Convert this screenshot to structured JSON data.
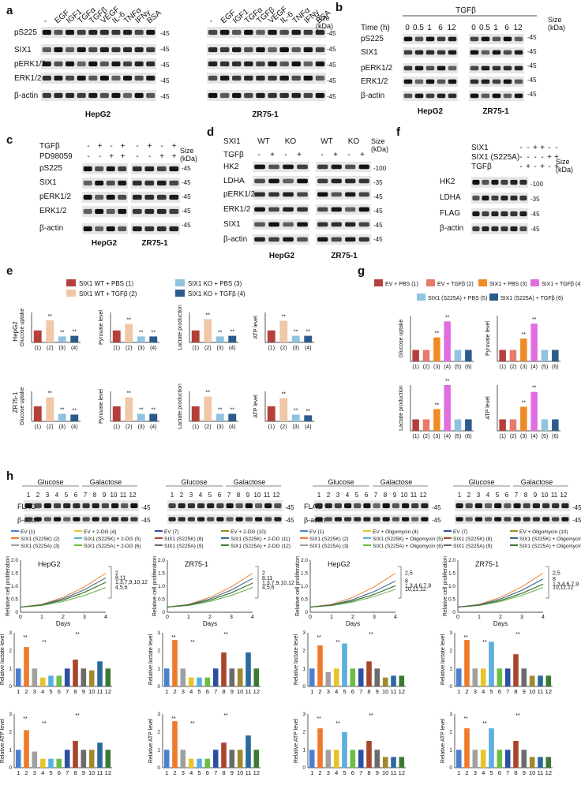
{
  "panel_letters": [
    "a",
    "b",
    "c",
    "d",
    "e",
    "f",
    "g",
    "h"
  ],
  "common": {
    "size_kda_1": "Size",
    "size_kda_2": "(kDa)",
    "hepg2": "HepG2",
    "zr75": "ZR75-1",
    "days": "Days",
    "beta_actin": "β-actin"
  },
  "panel_a": {
    "treatments": [
      "-",
      "EGF",
      "IGF1",
      "TGFα",
      "TGFβ",
      "VEGF",
      "IL-6",
      "TNFα",
      "IFNγ",
      "BSA"
    ],
    "rows": [
      "pS225",
      "SIX1",
      "pERK1/2",
      "ERK1/2",
      "β-actin"
    ],
    "sizes": [
      "45",
      "45",
      "45",
      "45",
      "45"
    ]
  },
  "panel_b": {
    "header": "TGFβ",
    "time_label": "Time (h)",
    "times": [
      "0",
      "0.5",
      "1",
      "6",
      "12"
    ],
    "rows": [
      "pS225",
      "SIX1",
      "pERK1/2",
      "ERK1/2",
      "β-actin"
    ],
    "sizes": [
      "45",
      "45",
      "45",
      "45",
      "45"
    ]
  },
  "panel_c": {
    "treat_labels": [
      "TGFβ",
      "PD98059"
    ],
    "tgfb_signs": [
      "-",
      "+",
      "-",
      "+"
    ],
    "pd_signs": [
      "-",
      "-",
      "+",
      "+"
    ],
    "rows": [
      "pS225",
      "SIX1",
      "pERK1/2",
      "ERK1/2",
      "β-actin"
    ],
    "sizes": [
      "45",
      "45",
      "45",
      "45",
      "45"
    ]
  },
  "panel_d": {
    "genotype_label": "SXI1",
    "genotypes": [
      "WT",
      "KO"
    ],
    "tgfb_label": "TGFβ",
    "tgfb_signs": [
      "-",
      "+",
      "-",
      "+"
    ],
    "rows": [
      "HK2",
      "LDHA",
      "pERK1/2",
      "ERK1/2",
      "SIX1",
      "β-actin"
    ],
    "sizes": [
      "100",
      "35",
      "45",
      "45",
      "45",
      "45"
    ]
  },
  "panel_f": {
    "treat_labels": [
      "SIX1",
      "SIX1 (S225A)",
      "TGFβ"
    ],
    "six1_signs": [
      "-",
      "-",
      "+",
      "+",
      "-",
      "-"
    ],
    "s225a_signs": [
      "-",
      "-",
      "-",
      "-",
      "+",
      "+"
    ],
    "tgfb_signs": [
      "-",
      "+",
      "-",
      "+",
      "-",
      "+"
    ],
    "rows": [
      "HK2",
      "LDHA",
      "FLAG",
      "β-actin"
    ],
    "sizes": [
      "100",
      "35",
      "45",
      "45"
    ]
  },
  "chart_data": [
    {
      "id": "e-hepg2",
      "type": "bar",
      "cell_line": "HepG2",
      "legend": [
        "SIX1 WT + PBS (1)",
        "SIX1 WT + TGFβ (2)",
        "SIX1 KO + PBS (3)",
        "SIX1 KO + TGFβ (4)"
      ],
      "colors": [
        "#b4403c",
        "#f0c8a8",
        "#8fc3e0",
        "#2c5a8c"
      ],
      "categories": [
        "(1)",
        "(2)",
        "(3)",
        "(4)"
      ],
      "ylim": [
        0,
        2.5
      ],
      "subplots": [
        {
          "ylabel": "Glucose uptake",
          "values": [
            1.0,
            1.85,
            0.5,
            0.55
          ],
          "stars": [
            "",
            "**",
            "**",
            "**"
          ]
        },
        {
          "ylabel": "Pyruvate level",
          "values": [
            1.0,
            1.55,
            0.5,
            0.5
          ],
          "stars": [
            "",
            "**",
            "**",
            "**"
          ]
        },
        {
          "ylabel": "Lactate production",
          "values": [
            1.0,
            1.95,
            0.5,
            0.55
          ],
          "stars": [
            "",
            "**",
            "**",
            "**"
          ]
        },
        {
          "ylabel": "ATP level",
          "values": [
            1.0,
            1.8,
            0.55,
            0.55
          ],
          "stars": [
            "",
            "**",
            "**",
            "**"
          ]
        }
      ]
    },
    {
      "id": "e-zr75",
      "type": "bar",
      "cell_line": "ZR75-1",
      "categories": [
        "(1)",
        "(2)",
        "(3)",
        "(4)"
      ],
      "ylim": [
        0,
        2.0
      ],
      "subplots": [
        {
          "ylabel": "Glucose uptake",
          "values": [
            1.0,
            1.6,
            0.5,
            0.45
          ],
          "stars": [
            "",
            "**",
            "**",
            "**"
          ]
        },
        {
          "ylabel": "Pyruvate level",
          "values": [
            1.0,
            1.6,
            0.5,
            0.5
          ],
          "stars": [
            "",
            "**",
            "**",
            "**"
          ]
        },
        {
          "ylabel": "Lactate production",
          "values": [
            1.0,
            1.65,
            0.5,
            0.5
          ],
          "stars": [
            "",
            "**",
            "**",
            "**"
          ]
        },
        {
          "ylabel": "ATP level",
          "values": [
            1.0,
            1.55,
            0.45,
            0.4
          ],
          "stars": [
            "",
            "**",
            "**",
            "**"
          ]
        }
      ]
    },
    {
      "id": "g",
      "type": "bar",
      "legend": [
        "EV + PBS (1)",
        "EV + TGFβ (2)",
        "SIX1 + PBS (3)",
        "SIX1 + TGFβ (4)",
        "SIX1 (S225A) + PBS (5)",
        "SIX1 (S225A) + TGFβ (6)"
      ],
      "colors": [
        "#b4403c",
        "#e87a6a",
        "#f08a24",
        "#e06ee0",
        "#8fc3e0",
        "#2c5a8c"
      ],
      "categories": [
        "(1)",
        "(2)",
        "(3)",
        "(4)",
        "(5)",
        "(6)"
      ],
      "ylim": [
        0,
        4
      ],
      "subplots": [
        {
          "ylabel": "Glucose uptake",
          "values": [
            1.0,
            1.0,
            2.1,
            3.5,
            1.0,
            1.0
          ],
          "stars": [
            "",
            "",
            "**",
            "**",
            "",
            ""
          ]
        },
        {
          "ylabel": "Pyruvate level",
          "values": [
            1.0,
            1.0,
            2.0,
            3.3,
            1.0,
            1.0
          ],
          "stars": [
            "",
            "",
            "**",
            "**",
            "",
            ""
          ]
        },
        {
          "ylabel": "Lactate production",
          "values": [
            1.0,
            1.0,
            1.9,
            4.0,
            1.0,
            1.0
          ],
          "stars": [
            "",
            "",
            "**",
            "**",
            "",
            ""
          ]
        },
        {
          "ylabel": "ATP level",
          "values": [
            1.0,
            1.0,
            2.1,
            3.4,
            1.0,
            1.0
          ],
          "stars": [
            "",
            "",
            "**",
            "**",
            "",
            ""
          ]
        }
      ]
    },
    {
      "id": "h-2dg-legend",
      "type": "legend",
      "entries": [
        "EV (1)",
        "SIX1 (S225K) (2)",
        "SIX1 (S225A) (3)",
        "EV + 2-DG (4)",
        "SIX1 (S225K) + 2-DG (5)",
        "SIX1 (S225A) + 2-DG (6)",
        "EV (7)",
        "SIX1 (S225K) (8)",
        "SIX1 (S225A) (9)",
        "EV + 2-DG (10)",
        "SIX1 (S225K) + 2-DG (11)",
        "SIX1 (S225A) + 2-DG (12)"
      ],
      "colors": [
        "#4a7fd0",
        "#ef7a2a",
        "#a0a0a0",
        "#e9c32a",
        "#5aaee0",
        "#6cbd45",
        "#2d4fa0",
        "#a9452a",
        "#6b6b6b",
        "#a0892a",
        "#2c6a9c",
        "#3c7a33"
      ]
    },
    {
      "id": "h-oligo-legend",
      "type": "legend",
      "entries": [
        "EV (1)",
        "SIX1 (S225K) (2)",
        "SIX1 (S225A) (3)",
        "EV + Oligomycin (4)",
        "SIX1 (S225K) + Oligomycin (5)",
        "SIX1 (S225A) + Oligomycin (6)",
        "EV (7)",
        "SIX1 (S225K) (8)",
        "SIX1 (S225A) (9)",
        "EV + Oligomycin (10)",
        "SIX1 (S225K) + Oligomycin (11)",
        "SIX1 (S225A) + Oligomycin (12)"
      ]
    },
    {
      "id": "h-lines",
      "type": "line",
      "xlabel": "Days",
      "ylabel": "Relative cell proliferation",
      "x": [
        0,
        1,
        2,
        3,
        4
      ],
      "ylim": [
        0,
        2.0
      ],
      "yticks": [
        "0",
        "0.5",
        "1.0",
        "1.5",
        "2.0"
      ],
      "panels": [
        {
          "cell_line": "HepG2",
          "group_labels": [
            "2",
            "8,11",
            "1,3,7,9,10,12",
            "4,5,6"
          ],
          "ends": [
            1.5,
            1.32,
            1.15,
            0.95
          ]
        },
        {
          "cell_line": "ZR75-1",
          "group_labels": [
            "2",
            "8,11",
            "1,3,7,9,10,12",
            "4,5,6"
          ],
          "ends": [
            1.5,
            1.3,
            1.12,
            0.95
          ]
        },
        {
          "cell_line": "HepG2",
          "group_labels": [
            "2,5",
            "8",
            "1,3,4,6,7,9",
            "10,11,12"
          ],
          "ends": [
            1.5,
            1.2,
            1.02,
            0.88
          ]
        },
        {
          "cell_line": "ZR75-1",
          "group_labels": [
            "2,5",
            "8",
            "1,3,4,6,7,9",
            "10,11,12"
          ],
          "ends": [
            1.5,
            1.28,
            1.08,
            0.95
          ]
        }
      ]
    },
    {
      "id": "h-bars",
      "type": "bar",
      "categories": [
        "1",
        "2",
        "3",
        "4",
        "5",
        "6",
        "7",
        "8",
        "9",
        "10",
        "11",
        "12"
      ],
      "ylim": [
        0,
        3
      ],
      "yticks": [
        "0",
        "1",
        "2",
        "3"
      ],
      "lactate_ylabel": "Relative lactate level",
      "atp_ylabel": "Relative ATP level",
      "lactate": [
        [
          1.0,
          2.2,
          1.0,
          0.5,
          0.6,
          0.6,
          1.0,
          1.5,
          1.0,
          0.9,
          1.4,
          1.0
        ],
        [
          1.0,
          2.6,
          1.0,
          0.5,
          0.5,
          0.5,
          1.0,
          1.9,
          1.0,
          1.0,
          1.9,
          1.0
        ],
        [
          1.0,
          2.3,
          0.8,
          1.0,
          2.4,
          1.0,
          1.0,
          1.4,
          1.0,
          0.5,
          0.6,
          0.6
        ],
        [
          1.0,
          2.6,
          1.0,
          1.0,
          2.5,
          1.0,
          1.0,
          1.8,
          1.0,
          0.6,
          0.6,
          0.6
        ]
      ],
      "atp": [
        [
          1.0,
          2.1,
          0.9,
          0.5,
          0.5,
          0.5,
          1.0,
          1.5,
          1.0,
          1.0,
          1.4,
          1.0
        ],
        [
          1.0,
          2.6,
          1.0,
          0.5,
          0.5,
          0.5,
          1.0,
          1.4,
          1.0,
          1.0,
          1.8,
          1.0
        ],
        [
          1.0,
          2.2,
          1.0,
          1.0,
          2.0,
          1.0,
          1.0,
          1.5,
          1.0,
          0.6,
          0.6,
          0.6
        ],
        [
          1.0,
          2.2,
          1.0,
          1.0,
          2.2,
          1.0,
          1.0,
          1.5,
          1.0,
          0.6,
          0.6,
          0.6
        ]
      ]
    }
  ],
  "panel_h_blots": {
    "glucose": "Glucose",
    "galactose": "Galactose",
    "lanes": [
      "1",
      "2",
      "3",
      "4",
      "5",
      "6",
      "7",
      "8",
      "9",
      "10",
      "11",
      "12"
    ],
    "rows": [
      "FLAG",
      "β-actin"
    ],
    "sizes": [
      "45",
      "45"
    ]
  },
  "sig": "**"
}
